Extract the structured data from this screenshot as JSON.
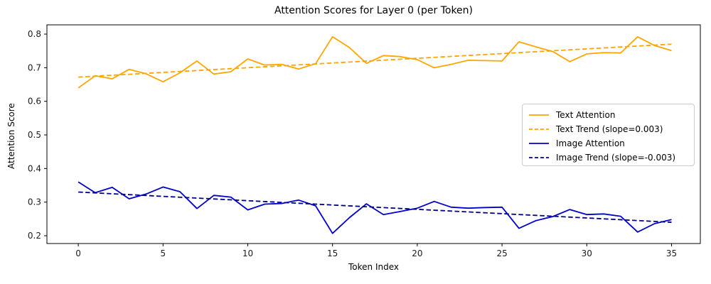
{
  "chart_data": {
    "type": "line",
    "title": "Attention Scores for Layer 0 (per Token)",
    "xlabel": "Token Index",
    "ylabel": "Attention Score",
    "x": [
      0,
      1,
      2,
      3,
      4,
      5,
      6,
      7,
      8,
      9,
      10,
      11,
      12,
      13,
      14,
      15,
      16,
      17,
      18,
      19,
      20,
      21,
      22,
      23,
      24,
      25,
      26,
      27,
      28,
      29,
      30,
      31,
      32,
      33,
      34,
      35
    ],
    "x_ticks": [
      0,
      5,
      10,
      15,
      20,
      25,
      30,
      35
    ],
    "y_ticks": [
      0.2,
      0.3,
      0.4,
      0.5,
      0.6,
      0.7,
      0.8
    ],
    "xlim": [
      -1.85,
      36.7
    ],
    "ylim": [
      0.1768,
      0.8275
    ],
    "grid": false,
    "legend_position": "center right",
    "series": [
      {
        "id": "text-attention",
        "name": "Text Attention",
        "color": "#FFA500",
        "style": "solid",
        "values": [
          0.64,
          0.676,
          0.667,
          0.695,
          0.682,
          0.658,
          0.685,
          0.72,
          0.681,
          0.688,
          0.726,
          0.708,
          0.71,
          0.696,
          0.712,
          0.792,
          0.76,
          0.713,
          0.736,
          0.733,
          0.724,
          0.7,
          0.71,
          0.722,
          0.721,
          0.72,
          0.777,
          0.762,
          0.748,
          0.718,
          0.741,
          0.745,
          0.744,
          0.792,
          0.766,
          0.751
        ]
      },
      {
        "id": "text-trend",
        "name": "Text Trend (slope=0.003)",
        "color": "#FFA500",
        "style": "dashed",
        "slope": 0.003,
        "trend_start": 0.672,
        "trend_end": 0.77
      },
      {
        "id": "image-attention",
        "name": "Image Attention",
        "color": "#0000CD",
        "style": "solid",
        "values": [
          0.36,
          0.328,
          0.344,
          0.31,
          0.324,
          0.345,
          0.331,
          0.281,
          0.32,
          0.315,
          0.277,
          0.294,
          0.296,
          0.306,
          0.289,
          0.207,
          0.254,
          0.295,
          0.263,
          0.272,
          0.282,
          0.302,
          0.285,
          0.282,
          0.284,
          0.285,
          0.222,
          0.245,
          0.257,
          0.278,
          0.263,
          0.265,
          0.258,
          0.211,
          0.236,
          0.248
        ]
      },
      {
        "id": "image-trend",
        "name": "Image Trend (slope=-0.003)",
        "color": "#00008B",
        "style": "dashed",
        "slope": -0.003,
        "trend_start": 0.33,
        "trend_end": 0.24
      }
    ]
  }
}
